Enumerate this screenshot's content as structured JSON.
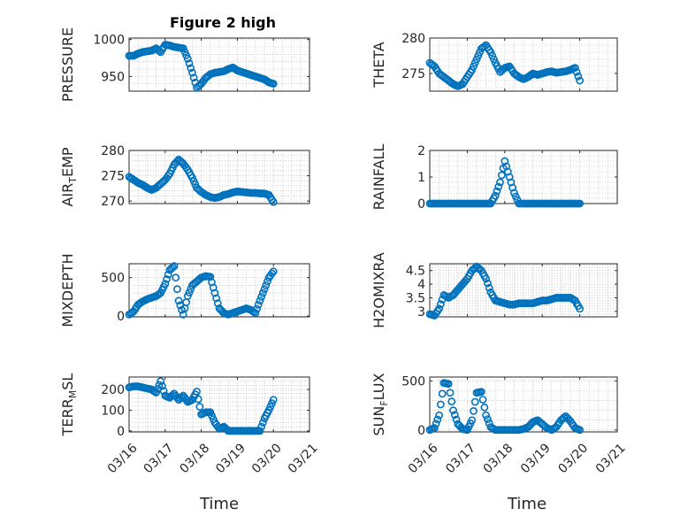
{
  "figure": {
    "title": "Figure 2 high"
  },
  "style": {
    "marker_color": "#0072BD"
  },
  "chart_data": [
    {
      "type": "scatter",
      "title": "Figure 2 high",
      "ylabel": "PRESSURE",
      "xlabel": "",
      "xlim": [
        "03/16",
        "03/21"
      ],
      "ylim": [
        930,
        1002
      ],
      "yticks": [
        950,
        1000
      ],
      "xticks": [
        "03/16",
        "03/17",
        "03/18",
        "03/19",
        "03/20",
        "03/21"
      ],
      "grid": true,
      "x": [
        "03/16 00:00",
        "03/16 03:00",
        "03/16 06:00",
        "03/16 09:00",
        "03/16 12:00",
        "03/16 15:00",
        "03/16 18:00",
        "03/16 21:00",
        "03/17 00:00",
        "03/17 03:00",
        "03/17 06:00",
        "03/17 09:00",
        "03/17 12:00",
        "03/17 15:00",
        "03/17 18:00",
        "03/17 21:00",
        "03/18 00:00",
        "03/18 03:00",
        "03/18 06:00",
        "03/18 09:00",
        "03/18 12:00",
        "03/18 15:00",
        "03/18 18:00",
        "03/18 21:00",
        "03/19 00:00",
        "03/19 03:00",
        "03/19 06:00",
        "03/19 09:00",
        "03/19 12:00",
        "03/19 15:00",
        "03/19 18:00",
        "03/19 21:00",
        "03/20 00:00"
      ],
      "values": [
        978,
        978,
        981,
        983,
        984,
        985,
        988,
        983,
        993,
        992,
        990,
        989,
        988,
        974,
        955,
        935,
        940,
        948,
        953,
        955,
        956,
        957,
        960,
        962,
        958,
        956,
        954,
        952,
        950,
        948,
        946,
        942,
        940
      ]
    },
    {
      "type": "scatter",
      "ylabel": "THETA",
      "xlabel": "",
      "xlim": [
        "03/16",
        "03/21"
      ],
      "ylim": [
        272.5,
        280
      ],
      "yticks": [
        275,
        280
      ],
      "xticks": [
        "03/16",
        "03/17",
        "03/18",
        "03/19",
        "03/20",
        "03/21"
      ],
      "grid": true,
      "x": [
        "03/16 00:00",
        "03/16 03:00",
        "03/16 06:00",
        "03/16 09:00",
        "03/16 12:00",
        "03/16 15:00",
        "03/16 18:00",
        "03/16 21:00",
        "03/17 00:00",
        "03/17 03:00",
        "03/17 06:00",
        "03/17 09:00",
        "03/17 12:00",
        "03/17 15:00",
        "03/17 18:00",
        "03/17 21:00",
        "03/18 00:00",
        "03/18 03:00",
        "03/18 06:00",
        "03/18 09:00",
        "03/18 12:00",
        "03/18 15:00",
        "03/18 18:00",
        "03/18 21:00",
        "03/19 00:00",
        "03/19 03:00",
        "03/19 06:00",
        "03/19 09:00",
        "03/19 12:00",
        "03/19 15:00",
        "03/19 18:00",
        "03/19 21:00",
        "03/20 00:00"
      ],
      "values": [
        276.5,
        276,
        275,
        274.5,
        274,
        273.5,
        273.2,
        273.5,
        274.5,
        275.5,
        277,
        278.5,
        279,
        278,
        276.5,
        275.2,
        275.8,
        276,
        275,
        274.5,
        274.2,
        274.5,
        275,
        274.8,
        275,
        275.2,
        275.3,
        275.1,
        275.2,
        275.3,
        275.5,
        275.8,
        274
      ]
    },
    {
      "type": "scatter",
      "ylabel": "AIR_TEMP",
      "xlabel": "",
      "xlim": [
        "03/16",
        "03/21"
      ],
      "ylim": [
        269.5,
        280
      ],
      "yticks": [
        270,
        275,
        280
      ],
      "xticks": [
        "03/16",
        "03/17",
        "03/18",
        "03/19",
        "03/20",
        "03/21"
      ],
      "grid": true,
      "x": [
        "03/16 00:00",
        "03/16 03:00",
        "03/16 06:00",
        "03/16 09:00",
        "03/16 12:00",
        "03/16 15:00",
        "03/16 18:00",
        "03/16 21:00",
        "03/17 00:00",
        "03/17 03:00",
        "03/17 06:00",
        "03/17 09:00",
        "03/17 12:00",
        "03/17 15:00",
        "03/17 18:00",
        "03/17 21:00",
        "03/18 00:00",
        "03/18 03:00",
        "03/18 06:00",
        "03/18 09:00",
        "03/18 12:00",
        "03/18 15:00",
        "03/18 18:00",
        "03/18 21:00",
        "03/19 00:00",
        "03/19 03:00",
        "03/19 06:00",
        "03/19 09:00",
        "03/19 12:00",
        "03/19 15:00",
        "03/19 18:00",
        "03/19 21:00",
        "03/20 00:00"
      ],
      "values": [
        274.8,
        274.2,
        273.6,
        273.2,
        272.6,
        272.2,
        272.6,
        273.4,
        274.2,
        275.4,
        277.2,
        278.2,
        277.4,
        276.2,
        274.6,
        272.6,
        271.8,
        271.2,
        270.8,
        270.6,
        270.8,
        271.2,
        271.4,
        271.7,
        271.9,
        271.8,
        271.7,
        271.6,
        271.6,
        271.5,
        271.5,
        271.2,
        269.8
      ]
    },
    {
      "type": "scatter",
      "ylabel": "RAINFALL",
      "xlabel": "",
      "xlim": [
        "03/16",
        "03/21"
      ],
      "ylim": [
        0,
        2
      ],
      "yticks": [
        0,
        1,
        2
      ],
      "xticks": [
        "03/16",
        "03/17",
        "03/18",
        "03/19",
        "03/20",
        "03/21"
      ],
      "grid": true,
      "x": [
        "03/16 00:00",
        "03/16 03:00",
        "03/16 06:00",
        "03/16 09:00",
        "03/16 12:00",
        "03/16 15:00",
        "03/16 18:00",
        "03/16 21:00",
        "03/17 00:00",
        "03/17 03:00",
        "03/17 06:00",
        "03/17 09:00",
        "03/17 12:00",
        "03/17 15:00",
        "03/17 18:00",
        "03/17 21:00",
        "03/18 00:00",
        "03/18 03:00",
        "03/18 06:00",
        "03/18 09:00",
        "03/18 12:00",
        "03/18 15:00",
        "03/18 18:00",
        "03/18 21:00",
        "03/19 00:00",
        "03/19 03:00",
        "03/19 06:00",
        "03/19 09:00",
        "03/19 12:00",
        "03/19 15:00",
        "03/19 18:00",
        "03/19 21:00",
        "03/20 00:00"
      ],
      "values": [
        0,
        0,
        0,
        0,
        0,
        0,
        0,
        0,
        0,
        0,
        0,
        0,
        0,
        0,
        0.3,
        0.8,
        1.6,
        1.0,
        0.4,
        0,
        0,
        0,
        0,
        0,
        0,
        0,
        0,
        0,
        0,
        0,
        0,
        0,
        0
      ]
    },
    {
      "type": "scatter",
      "ylabel": "MIXDEPTH",
      "xlabel": "",
      "xlim": [
        "03/16",
        "03/21"
      ],
      "ylim": [
        -10,
        680
      ],
      "yticks": [
        0,
        500
      ],
      "xticks": [
        "03/16",
        "03/17",
        "03/18",
        "03/19",
        "03/20",
        "03/21"
      ],
      "grid": true,
      "x": [
        "03/16 00:00",
        "03/16 03:00",
        "03/16 06:00",
        "03/16 09:00",
        "03/16 12:00",
        "03/16 15:00",
        "03/16 18:00",
        "03/16 21:00",
        "03/17 00:00",
        "03/17 03:00",
        "03/17 06:00",
        "03/17 09:00",
        "03/17 12:00",
        "03/17 15:00",
        "03/17 18:00",
        "03/17 21:00",
        "03/18 00:00",
        "03/18 03:00",
        "03/18 06:00",
        "03/18 09:00",
        "03/18 12:00",
        "03/18 15:00",
        "03/18 18:00",
        "03/18 21:00",
        "03/19 00:00",
        "03/19 03:00",
        "03/19 06:00",
        "03/19 09:00",
        "03/19 12:00",
        "03/19 15:00",
        "03/19 18:00",
        "03/19 21:00",
        "03/20 00:00"
      ],
      "values": [
        20,
        60,
        150,
        190,
        220,
        240,
        260,
        300,
        420,
        600,
        650,
        200,
        20,
        260,
        400,
        450,
        500,
        520,
        510,
        300,
        100,
        40,
        20,
        40,
        60,
        80,
        100,
        80,
        40,
        200,
        350,
        500,
        580
      ]
    },
    {
      "type": "scatter",
      "ylabel": "H2OMIXRA",
      "xlabel": "",
      "xlim": [
        "03/16",
        "03/21"
      ],
      "ylim": [
        2.8,
        4.75
      ],
      "yticks": [
        3,
        3.5,
        4,
        4.5
      ],
      "xticks": [
        "03/16",
        "03/17",
        "03/18",
        "03/19",
        "03/20",
        "03/21"
      ],
      "grid": true,
      "x": [
        "03/16 00:00",
        "03/16 03:00",
        "03/16 06:00",
        "03/16 09:00",
        "03/16 12:00",
        "03/16 15:00",
        "03/16 18:00",
        "03/16 21:00",
        "03/17 00:00",
        "03/17 03:00",
        "03/17 06:00",
        "03/17 09:00",
        "03/17 12:00",
        "03/17 15:00",
        "03/17 18:00",
        "03/17 21:00",
        "03/18 00:00",
        "03/18 03:00",
        "03/18 06:00",
        "03/18 09:00",
        "03/18 12:00",
        "03/18 15:00",
        "03/18 18:00",
        "03/18 21:00",
        "03/19 00:00",
        "03/19 03:00",
        "03/19 06:00",
        "03/19 09:00",
        "03/19 12:00",
        "03/19 15:00",
        "03/19 18:00",
        "03/19 21:00",
        "03/20 00:00"
      ],
      "values": [
        2.9,
        2.85,
        3.1,
        3.6,
        3.5,
        3.6,
        3.8,
        4.0,
        4.2,
        4.5,
        4.65,
        4.5,
        4.2,
        3.7,
        3.4,
        3.35,
        3.3,
        3.25,
        3.25,
        3.3,
        3.3,
        3.3,
        3.3,
        3.35,
        3.4,
        3.4,
        3.45,
        3.5,
        3.5,
        3.5,
        3.5,
        3.4,
        3.1
      ]
    },
    {
      "type": "scatter",
      "ylabel": "TERR_MSL",
      "xlabel": "Time",
      "xlim": [
        "03/16",
        "03/21"
      ],
      "ylim": [
        -5,
        260
      ],
      "yticks": [
        0,
        100,
        200
      ],
      "xticks": [
        "03/16",
        "03/17",
        "03/18",
        "03/19",
        "03/20",
        "03/21"
      ],
      "grid": true,
      "x": [
        "03/16 00:00",
        "03/16 03:00",
        "03/16 06:00",
        "03/16 09:00",
        "03/16 12:00",
        "03/16 15:00",
        "03/16 18:00",
        "03/16 21:00",
        "03/17 00:00",
        "03/17 03:00",
        "03/17 06:00",
        "03/17 09:00",
        "03/17 12:00",
        "03/17 15:00",
        "03/17 18:00",
        "03/17 21:00",
        "03/18 00:00",
        "03/18 03:00",
        "03/18 06:00",
        "03/18 09:00",
        "03/18 12:00",
        "03/18 15:00",
        "03/18 18:00",
        "03/18 21:00",
        "03/19 00:00",
        "03/19 03:00",
        "03/19 06:00",
        "03/19 09:00",
        "03/19 12:00",
        "03/19 15:00",
        "03/19 18:00",
        "03/19 21:00",
        "03/20 00:00"
      ],
      "values": [
        210,
        215,
        215,
        210,
        205,
        200,
        185,
        240,
        170,
        160,
        180,
        150,
        170,
        140,
        150,
        190,
        80,
        90,
        90,
        40,
        10,
        20,
        0,
        0,
        0,
        0,
        0,
        0,
        0,
        0,
        60,
        100,
        150
      ]
    },
    {
      "type": "scatter",
      "ylabel": "SUN_FLUX",
      "xlabel": "Time",
      "xlim": [
        "03/16",
        "03/21"
      ],
      "ylim": [
        -20,
        540
      ],
      "yticks": [
        0,
        500
      ],
      "xticks": [
        "03/16",
        "03/17",
        "03/18",
        "03/19",
        "03/20",
        "03/21"
      ],
      "grid": true,
      "x": [
        "03/16 00:00",
        "03/16 03:00",
        "03/16 06:00",
        "03/16 09:00",
        "03/16 12:00",
        "03/16 15:00",
        "03/16 18:00",
        "03/16 21:00",
        "03/17 00:00",
        "03/17 03:00",
        "03/17 06:00",
        "03/17 09:00",
        "03/17 12:00",
        "03/17 15:00",
        "03/17 18:00",
        "03/17 21:00",
        "03/18 00:00",
        "03/18 03:00",
        "03/18 06:00",
        "03/18 09:00",
        "03/18 12:00",
        "03/18 15:00",
        "03/18 18:00",
        "03/18 21:00",
        "03/19 00:00",
        "03/19 03:00",
        "03/19 06:00",
        "03/19 09:00",
        "03/19 12:00",
        "03/19 15:00",
        "03/19 18:00",
        "03/19 21:00",
        "03/20 00:00"
      ],
      "values": [
        0,
        20,
        150,
        480,
        470,
        200,
        60,
        10,
        0,
        100,
        380,
        390,
        150,
        30,
        0,
        0,
        0,
        0,
        0,
        0,
        10,
        30,
        80,
        100,
        60,
        20,
        0,
        30,
        100,
        140,
        90,
        20,
        0
      ]
    }
  ]
}
